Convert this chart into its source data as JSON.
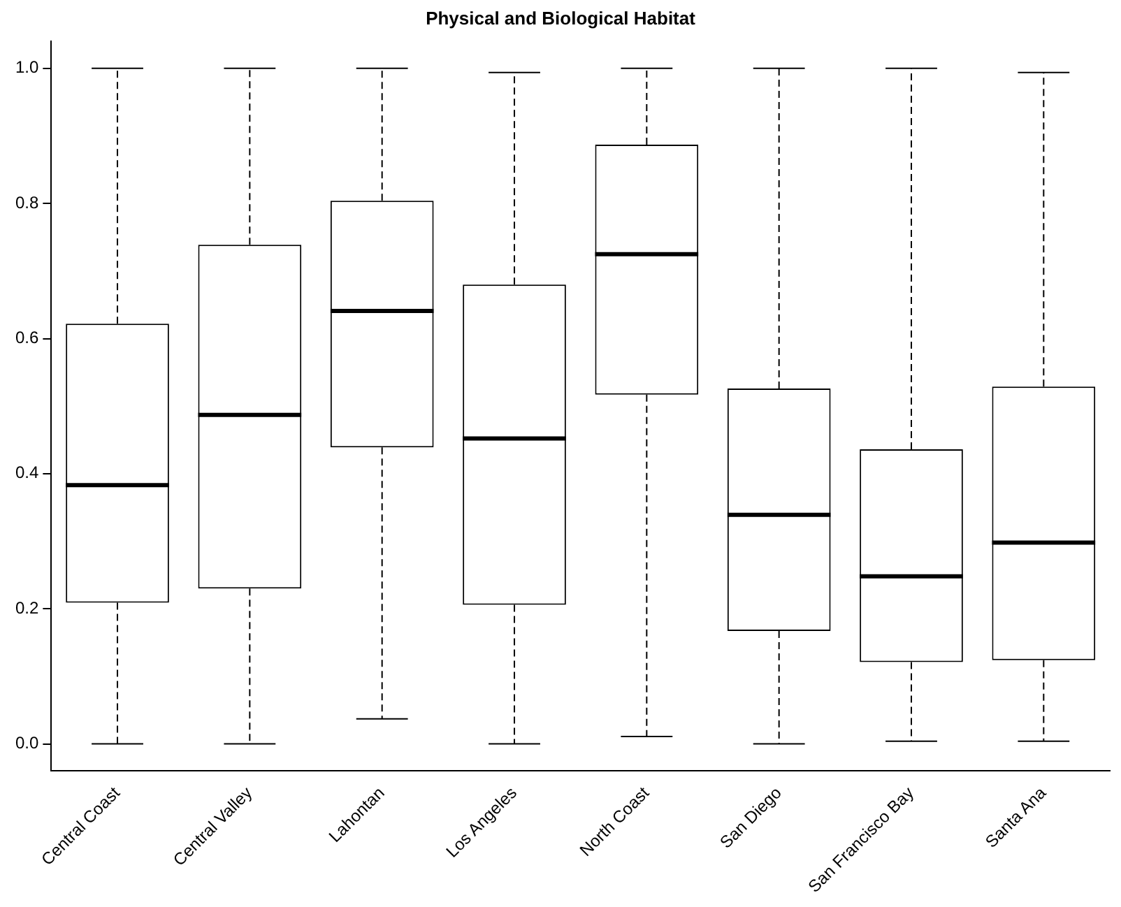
{
  "chart_data": {
    "type": "box",
    "title": "Physical and Biological Habitat",
    "categories": [
      "Central Coast",
      "Central Valley",
      "Lahontan",
      "Los Angeles",
      "North Coast",
      "San Diego",
      "San Francisco Bay",
      "Santa Ana"
    ],
    "boxes": [
      {
        "low": 0,
        "q1": 0.209,
        "median": 0.383,
        "q3": 0.622,
        "high": 1
      },
      {
        "low": 0,
        "q1": 0.23,
        "median": 0.487,
        "q3": 0.739,
        "high": 1
      },
      {
        "low": 0.037,
        "q1": 0.439,
        "median": 0.641,
        "q3": 0.804,
        "high": 1
      },
      {
        "low": 0,
        "q1": 0.206,
        "median": 0.452,
        "q3": 0.68,
        "high": 0.994
      },
      {
        "low": 0.011,
        "q1": 0.517,
        "median": 0.725,
        "q3": 0.887,
        "high": 1
      },
      {
        "low": 0,
        "q1": 0.167,
        "median": 0.339,
        "q3": 0.526,
        "high": 1
      },
      {
        "low": 0.004,
        "q1": 0.121,
        "median": 0.248,
        "q3": 0.436,
        "high": 1
      },
      {
        "low": 0.004,
        "q1": 0.124,
        "median": 0.298,
        "q3": 0.529,
        "high": 0.994
      }
    ],
    "color": "#000000",
    "line_style": "dashed",
    "ylim": [
      -0.04,
      1.04
    ],
    "yticks": [
      {
        "value": 0,
        "label": "0.0"
      },
      {
        "value": 0.2,
        "label": "0.2"
      },
      {
        "value": 0.4,
        "label": "0.4"
      },
      {
        "value": 0.6,
        "label": "0.6"
      },
      {
        "value": 0.8,
        "label": "0.8"
      },
      {
        "value": 1,
        "label": "1.0"
      }
    ],
    "grid": false,
    "legend": false
  }
}
